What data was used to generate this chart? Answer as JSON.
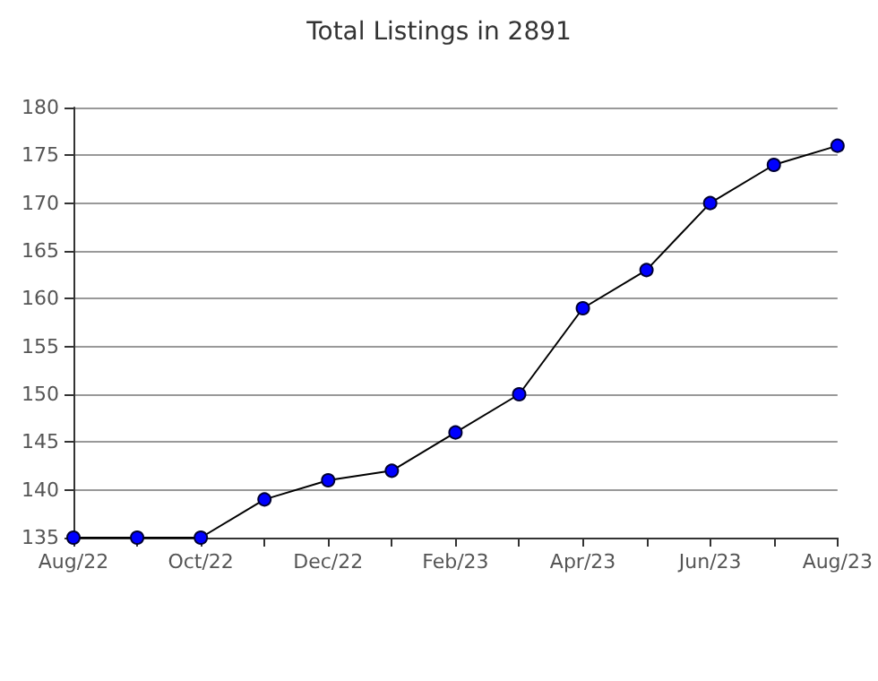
{
  "chart_data": {
    "type": "line",
    "title": "Total Listings in 2891",
    "categories": [
      "Aug/22",
      null,
      "Oct/22",
      null,
      "Dec/22",
      null,
      "Feb/23",
      null,
      "Apr/23",
      null,
      "Jun/23",
      null,
      "Aug/23"
    ],
    "series": [
      {
        "color": "#0000ff",
        "values": [
          135,
          135,
          135,
          139,
          141,
          142,
          146,
          150,
          159,
          163,
          170,
          174,
          176
        ]
      }
    ],
    "ylim": [
      135,
      180
    ],
    "yticks": [
      135,
      140,
      145,
      150,
      155,
      160,
      165,
      170,
      175,
      180
    ],
    "grid": "y",
    "marker": "circle",
    "line_style": "solid"
  }
}
